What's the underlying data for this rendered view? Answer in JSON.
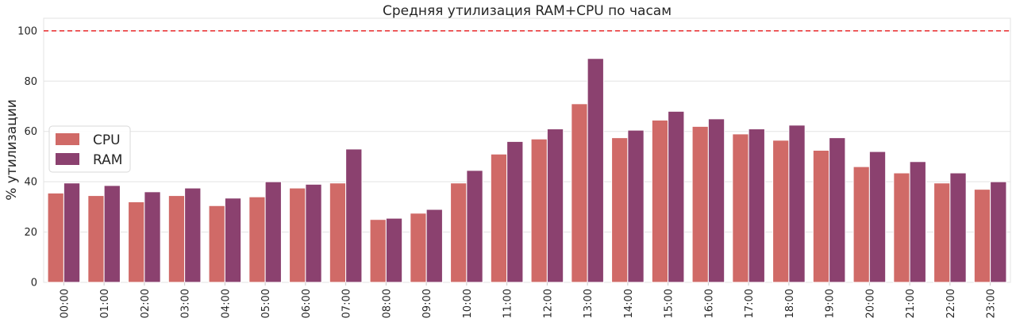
{
  "chart_data": {
    "type": "bar",
    "title": "Средняя утилизация RAM+CPU по часам",
    "xlabel": "",
    "ylabel": "% утилизации",
    "ylim": [
      0,
      105
    ],
    "yticks": [
      0,
      20,
      40,
      60,
      80,
      100
    ],
    "grid": true,
    "legend_position": "center-left",
    "threshold": {
      "value": 100,
      "style": "dashed",
      "color": "#e8292b"
    },
    "categories": [
      "00:00",
      "01:00",
      "02:00",
      "03:00",
      "04:00",
      "05:00",
      "06:00",
      "07:00",
      "08:00",
      "09:00",
      "10:00",
      "11:00",
      "12:00",
      "13:00",
      "14:00",
      "15:00",
      "16:00",
      "17:00",
      "18:00",
      "19:00",
      "20:00",
      "21:00",
      "22:00",
      "23:00"
    ],
    "series": [
      {
        "name": "CPU",
        "color": "#d06a67",
        "values": [
          35.5,
          34.5,
          32,
          34.5,
          30.5,
          34,
          37.5,
          39.5,
          25,
          27.5,
          39.5,
          51,
          57,
          71,
          57.5,
          64.5,
          62,
          59,
          56.5,
          52.5,
          46,
          43.5,
          39.5,
          37
        ]
      },
      {
        "name": "RAM",
        "color": "#8b416f",
        "values": [
          39.5,
          38.5,
          36,
          37.5,
          33.5,
          40,
          39,
          53,
          25.5,
          29,
          44.5,
          56,
          61,
          89,
          60.5,
          68,
          65,
          61,
          62.5,
          57.5,
          52,
          48,
          43.5,
          40
        ]
      }
    ]
  }
}
